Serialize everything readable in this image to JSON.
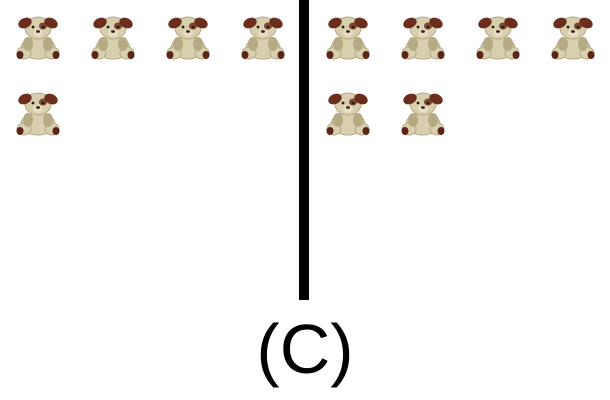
{
  "panels": [
    {
      "name": "left",
      "toy_count": 5
    },
    {
      "name": "right",
      "toy_count": 6
    }
  ],
  "toy_icon": "plush-puppy-icon",
  "caption": "(C)",
  "colors": {
    "fur": "#d8cfae",
    "fur_shade": "#b6aa84",
    "ear": "#6b2e1d",
    "paw": "#5a2518",
    "divider": "#000000"
  }
}
